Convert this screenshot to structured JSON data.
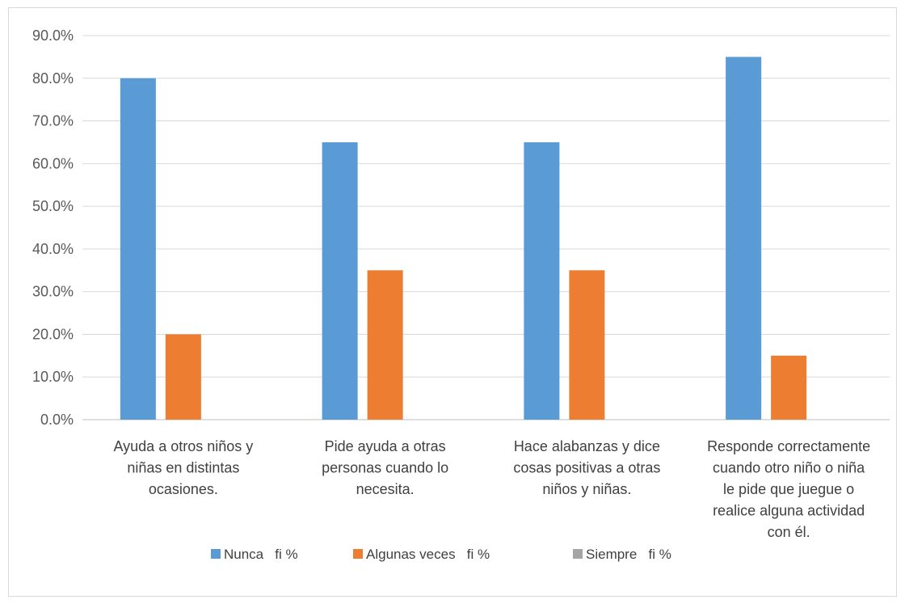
{
  "chart_data": {
    "type": "bar",
    "categories": [
      [
        "Ayuda a otros niños y",
        "niñas en distintas",
        "ocasiones."
      ],
      [
        "Pide ayuda a otras",
        "personas cuando lo",
        "necesita."
      ],
      [
        "Hace alabanzas y dice",
        "cosas positivas a otras",
        "niños y niñas."
      ],
      [
        "Responde correctamente",
        "cuando otro niño o niña",
        "le pide que juegue o",
        "realice alguna actividad",
        "con él."
      ]
    ],
    "series": [
      {
        "name": "Nunca   fi %",
        "color": "#5b9bd5",
        "values": [
          0.8,
          0.65,
          0.65,
          0.85
        ]
      },
      {
        "name": "Algunas veces   fi %",
        "color": "#ed7d31",
        "values": [
          0.2,
          0.35,
          0.35,
          0.15
        ]
      },
      {
        "name": "Siempre   fi %",
        "color": "#a5a5a5",
        "values": [
          0,
          0,
          0,
          0
        ]
      }
    ],
    "ylim": [
      0,
      0.9
    ],
    "yticks": [
      "0.0%",
      "10.0%",
      "20.0%",
      "30.0%",
      "40.0%",
      "50.0%",
      "60.0%",
      "70.0%",
      "80.0%",
      "90.0%"
    ],
    "grid": true,
    "legend": "bottom",
    "title": "",
    "xlabel": "",
    "ylabel": ""
  }
}
